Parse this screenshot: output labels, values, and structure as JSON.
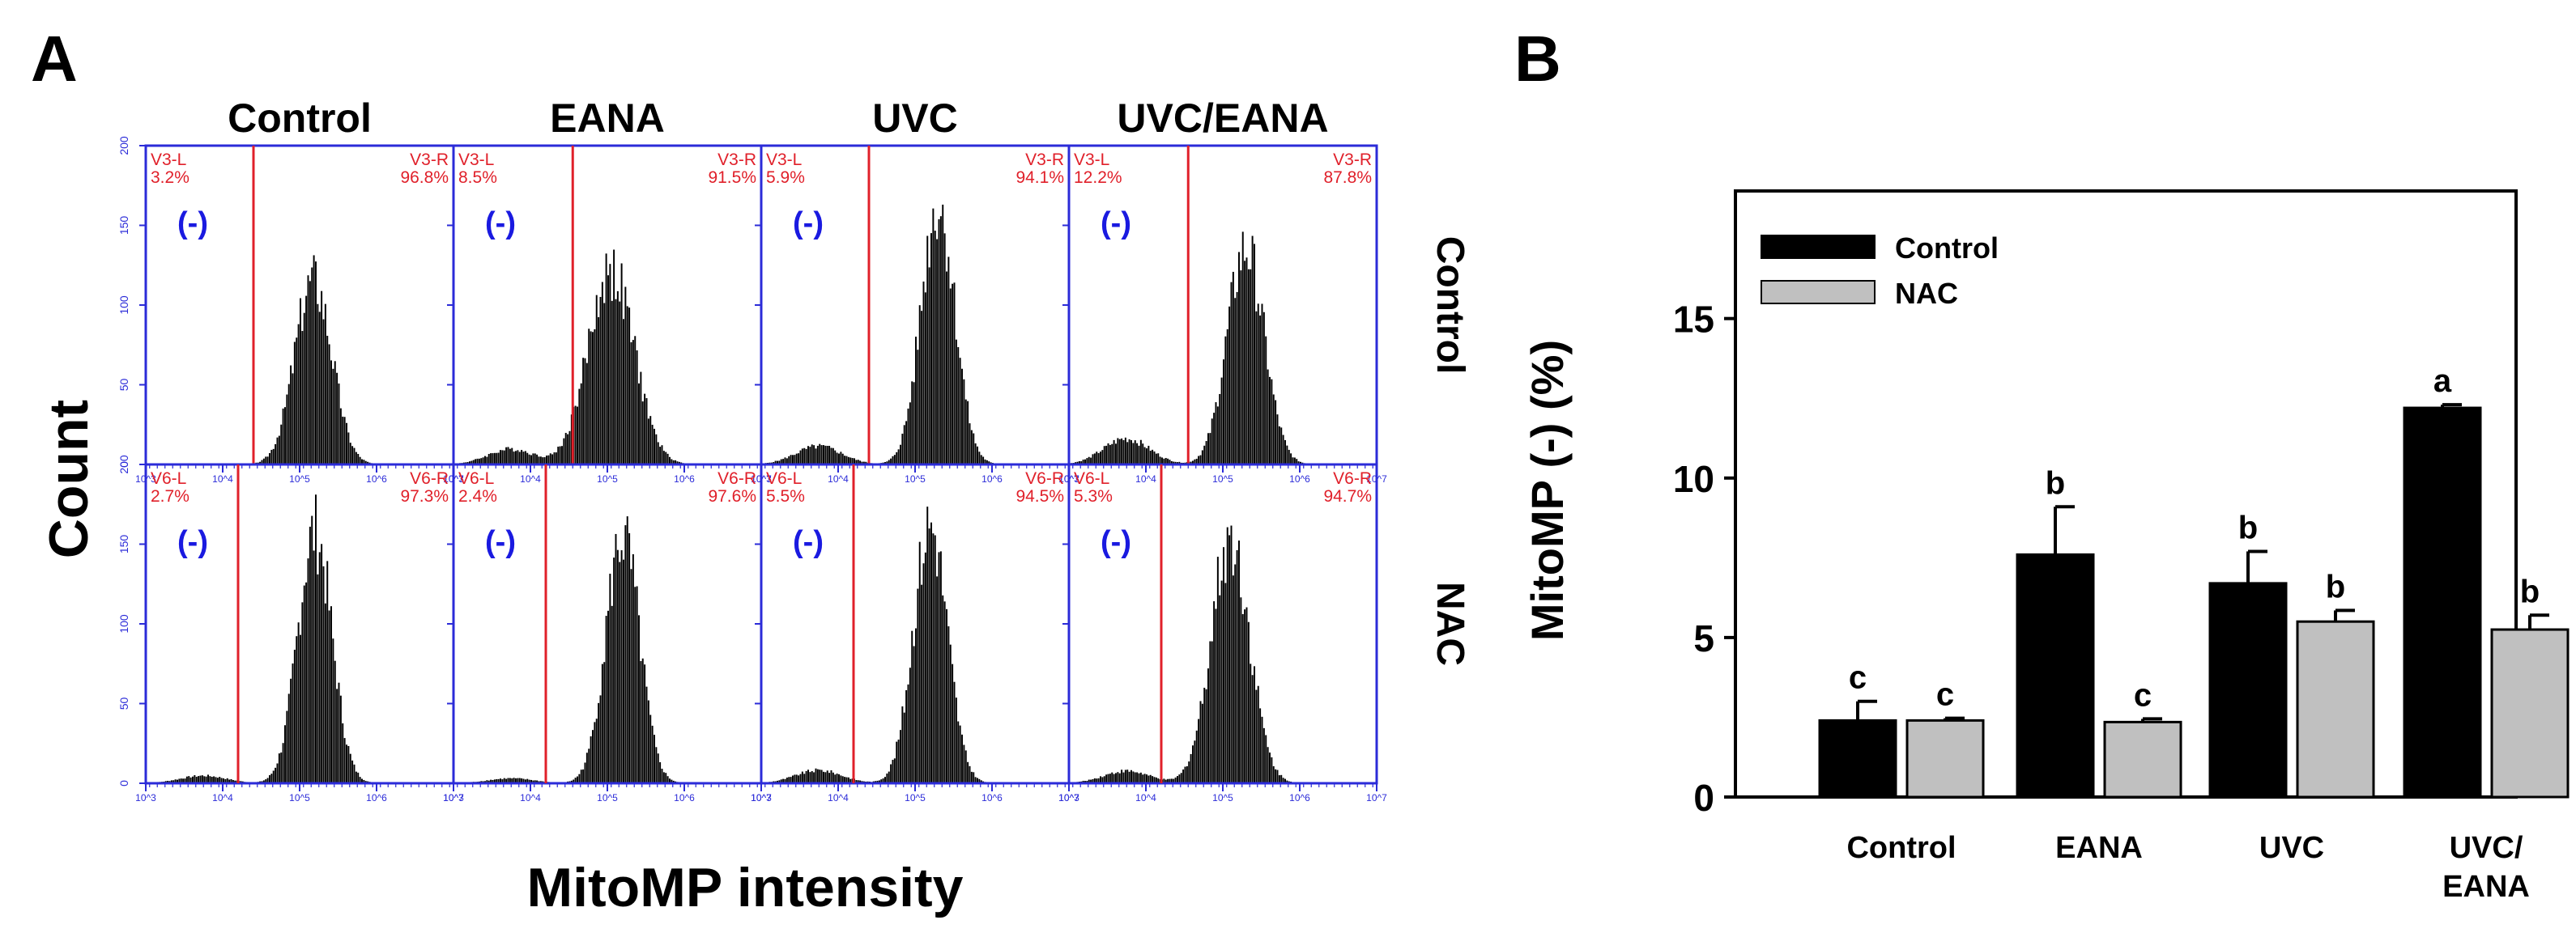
{
  "chart_data": [
    {
      "panel_label": "A",
      "type": "histogram-grid",
      "columns": [
        "Control",
        "EANA",
        "UVC",
        "UVC/EANA"
      ],
      "rows": [
        "Control",
        "NAC"
      ],
      "ylabel": "Count",
      "xlabel": "MitoMP intensity",
      "y_ticks": [
        "0",
        "50",
        "100",
        "150",
        "200"
      ],
      "x_ticks": [
        "10^3",
        "10^4",
        "10^5",
        "10^6",
        "10^7"
      ],
      "ylim": [
        0,
        200
      ],
      "xlim_log10": [
        3,
        7
      ],
      "negative_marker": "(-)",
      "panels": [
        {
          "row": "Control",
          "column": "Control",
          "gate_left_label": "V3-L",
          "gate_left_pct": "3.2%",
          "gate_right_label": "V3-R",
          "gate_right_pct": "96.8%",
          "gate_log10": 4.4,
          "peak_log10": 5.18,
          "peak_count": 125,
          "spread": 0.24,
          "low_bump": 0
        },
        {
          "row": "Control",
          "column": "EANA",
          "gate_left_label": "V3-L",
          "gate_left_pct": "8.5%",
          "gate_right_label": "V3-R",
          "gate_right_pct": "91.5%",
          "gate_log10": 4.55,
          "peak_log10": 5.05,
          "peak_count": 130,
          "spread": 0.3,
          "low_bump": 0.08
        },
        {
          "row": "Control",
          "column": "UVC",
          "gate_left_label": "V3-L",
          "gate_left_pct": "5.9%",
          "gate_right_label": "V3-R",
          "gate_right_pct": "94.1%",
          "gate_log10": 4.4,
          "peak_log10": 5.3,
          "peak_count": 175,
          "spread": 0.22,
          "low_bump": 0.07
        },
        {
          "row": "Control",
          "column": "UVC/EANA",
          "gate_left_label": "V3-L",
          "gate_left_pct": "12.2%",
          "gate_right_label": "V3-R",
          "gate_right_pct": "87.8%",
          "gate_log10": 4.55,
          "peak_log10": 5.3,
          "peak_count": 145,
          "spread": 0.24,
          "low_bump": 0.12
        },
        {
          "row": "NAC",
          "column": "Control",
          "gate_left_label": "V6-L",
          "gate_left_pct": "2.7%",
          "gate_right_label": "V6-R",
          "gate_right_pct": "97.3%",
          "gate_log10": 4.2,
          "peak_log10": 5.2,
          "peak_count": 170,
          "spread": 0.22,
          "low_bump": 0.03
        },
        {
          "row": "NAC",
          "column": "EANA",
          "gate_left_label": "V6-L",
          "gate_left_pct": "2.4%",
          "gate_right_label": "V6-R",
          "gate_right_pct": "97.6%",
          "gate_log10": 4.2,
          "peak_log10": 5.2,
          "peak_count": 165,
          "spread": 0.22,
          "low_bump": 0.02
        },
        {
          "row": "NAC",
          "column": "UVC",
          "gate_left_label": "V6-L",
          "gate_left_pct": "5.5%",
          "gate_right_label": "V6-R",
          "gate_right_pct": "94.5%",
          "gate_log10": 4.2,
          "peak_log10": 5.2,
          "peak_count": 175,
          "spread": 0.22,
          "low_bump": 0.05
        },
        {
          "row": "NAC",
          "column": "UVC/EANA",
          "gate_left_label": "V6-L",
          "gate_left_pct": "5.3%",
          "gate_right_label": "V6-R",
          "gate_right_pct": "94.7%",
          "gate_log10": 4.2,
          "peak_log10": 5.1,
          "peak_count": 165,
          "spread": 0.25,
          "low_bump": 0.05
        }
      ]
    },
    {
      "panel_label": "B",
      "type": "bar",
      "categories": [
        "Control",
        "EANA",
        "UVC",
        "UVC/\nEANA"
      ],
      "series": [
        {
          "name": "Control",
          "color": "#000000",
          "values": [
            2.4,
            7.6,
            6.7,
            12.2
          ],
          "errors": [
            0.6,
            1.5,
            1.0,
            0.1
          ],
          "letters": [
            "c",
            "b",
            "b",
            "a"
          ]
        },
        {
          "name": "NAC",
          "color": "#c0c0c0",
          "values": [
            2.4,
            2.35,
            5.5,
            5.25
          ],
          "errors": [
            0.07,
            0.1,
            0.35,
            0.45
          ],
          "letters": [
            "c",
            "c",
            "b",
            "b"
          ]
        }
      ],
      "ylabel": "MitoMP (-) (%)",
      "xlabel": "",
      "ylim": [
        0,
        19
      ],
      "y_ticks": [
        0,
        5,
        10,
        15
      ],
      "legend_position": "top-left"
    }
  ]
}
